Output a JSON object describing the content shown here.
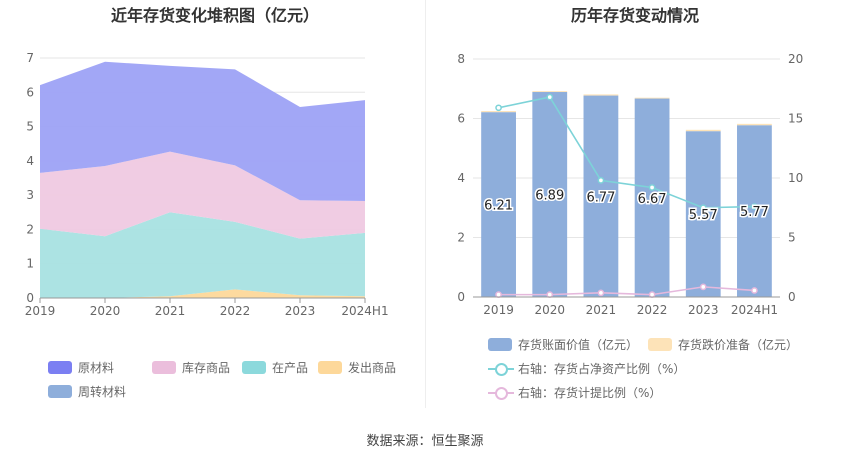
{
  "left_title": "近年存货变化堆积图（亿元）",
  "right_title": "历年存货变动情况",
  "source": "数据来源：恒生聚源",
  "chart_data": [
    {
      "type": "area",
      "stacked": true,
      "x": [
        "2019",
        "2020",
        "2021",
        "2022",
        "2023",
        "2024H1"
      ],
      "ylim": [
        0,
        7
      ],
      "yticks": [
        0,
        1,
        2,
        3,
        4,
        5,
        6,
        7
      ],
      "grid": true,
      "legend_position": "bottom",
      "series": [
        {
          "name": "周转材料",
          "color": "#8eaedb",
          "values": [
            0,
            0,
            0,
            0,
            0,
            0
          ]
        },
        {
          "name": "发出商品",
          "color": "#fdd89a",
          "values": [
            0,
            0,
            0.05,
            0.25,
            0.08,
            0.05
          ]
        },
        {
          "name": "在产品",
          "color": "#a8e2e2",
          "values": [
            2.02,
            1.8,
            2.45,
            1.97,
            1.65,
            1.85
          ]
        },
        {
          "name": "库存商品",
          "color": "#efc9e2",
          "values": [
            1.63,
            2.05,
            1.77,
            1.65,
            1.12,
            0.93
          ]
        },
        {
          "name": "原材料",
          "color": "#9da2f5",
          "values": [
            2.56,
            3.04,
            2.5,
            2.8,
            2.72,
            2.94
          ]
        }
      ],
      "legend": [
        {
          "name": "原材料",
          "color": "#7b7ff2"
        },
        {
          "name": "库存商品",
          "color": "#ebbedc"
        },
        {
          "name": "在产品",
          "color": "#8cd9dc"
        },
        {
          "name": "发出商品",
          "color": "#fdd89a"
        },
        {
          "name": "周转材料",
          "color": "#8eaedb"
        }
      ]
    },
    {
      "type": "bar",
      "x": [
        "2019",
        "2020",
        "2021",
        "2022",
        "2023",
        "2024H1"
      ],
      "ylim_left": [
        0,
        8
      ],
      "yticks_left": [
        0,
        2,
        4,
        6,
        8
      ],
      "ylim_right": [
        0,
        20
      ],
      "yticks_right": [
        0,
        5,
        10,
        15,
        20
      ],
      "grid": true,
      "legend_position": "bottom",
      "bars": {
        "name": "存货账面价值（亿元）",
        "color": "#8eaedb",
        "values": [
          6.21,
          6.89,
          6.77,
          6.67,
          5.57,
          5.77
        ],
        "labels": [
          "6.21",
          "6.89",
          "6.77",
          "6.67",
          "5.57",
          "5.77"
        ]
      },
      "bars_stack": {
        "name": "存货跌价准备（亿元）",
        "color": "#fde3b8",
        "values": [
          0.04,
          0.03,
          0.04,
          0.03,
          0.05,
          0.05
        ]
      },
      "lines": [
        {
          "name": "右轴：存货占净资产比例（%）",
          "color": "#7dd3d8",
          "axis": "right",
          "values": [
            15.9,
            16.8,
            9.8,
            9.2,
            7.5,
            7.6
          ]
        },
        {
          "name": "右轴：存货计提比例（%）",
          "color": "#e5b8dc",
          "axis": "right",
          "values": [
            0.2,
            0.2,
            0.35,
            0.2,
            0.85,
            0.55
          ]
        }
      ]
    }
  ]
}
